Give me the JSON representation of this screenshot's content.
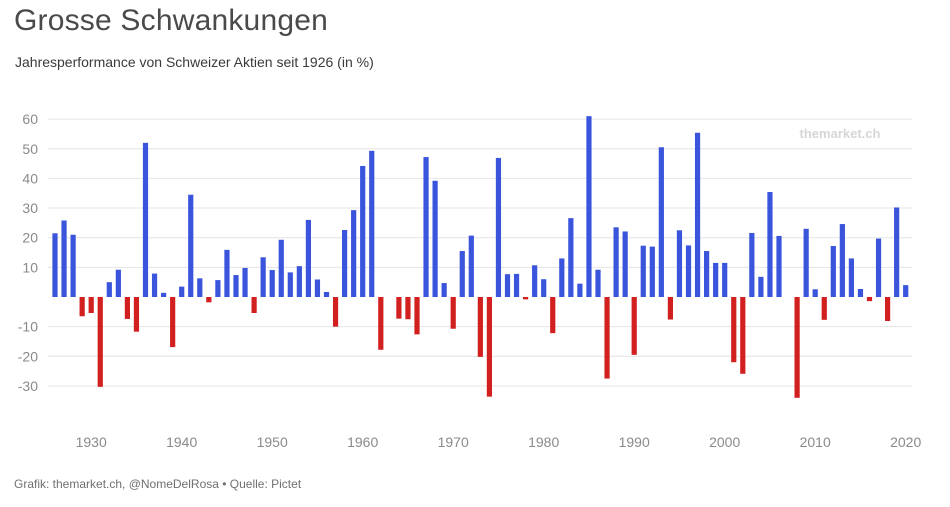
{
  "title": "Grosse Schwankungen",
  "subtitle": "Jahresperformance von Schweizer Aktien seit 1926 (in %)",
  "watermark": "themarket.ch",
  "footer": "Grafik: themarket.ch, @NomeDelRosa • Quelle: Pictet",
  "colors": {
    "positive": "#3a54dc",
    "negative": "#d21f1f",
    "grid": "#e4e4e4",
    "axis_text": "#8a8a8a"
  },
  "chart_data": {
    "type": "bar",
    "title": "Grosse Schwankungen",
    "subtitle": "Jahresperformance von Schweizer Aktien seit 1926 (in %)",
    "xlabel": "",
    "ylabel": "",
    "ylim": [
      -40,
      65
    ],
    "yticks": [
      60,
      50,
      40,
      30,
      20,
      10,
      -10,
      -20,
      -30
    ],
    "xticks": [
      1930,
      1940,
      1950,
      1960,
      1970,
      1980,
      1990,
      2000,
      2010,
      2020
    ],
    "grid": true,
    "legend": "none",
    "x": [
      1926,
      1927,
      1928,
      1929,
      1930,
      1931,
      1932,
      1933,
      1934,
      1935,
      1936,
      1937,
      1938,
      1939,
      1940,
      1941,
      1942,
      1943,
      1944,
      1945,
      1946,
      1947,
      1948,
      1949,
      1950,
      1951,
      1952,
      1953,
      1954,
      1955,
      1956,
      1957,
      1958,
      1959,
      1960,
      1961,
      1962,
      1963,
      1964,
      1965,
      1966,
      1967,
      1968,
      1969,
      1970,
      1971,
      1972,
      1973,
      1974,
      1975,
      1976,
      1977,
      1978,
      1979,
      1980,
      1981,
      1982,
      1983,
      1984,
      1985,
      1986,
      1987,
      1988,
      1989,
      1990,
      1991,
      1992,
      1993,
      1994,
      1995,
      1996,
      1997,
      1998,
      1999,
      2000,
      2001,
      2002,
      2003,
      2004,
      2005,
      2006,
      2007,
      2008,
      2009,
      2010,
      2011,
      2012,
      2013,
      2014,
      2015,
      2016,
      2017,
      2018,
      2019,
      2020
    ],
    "values": [
      21.5,
      25.8,
      21,
      -6.5,
      -5.4,
      -30.3,
      5,
      9.2,
      -7.4,
      -11.7,
      52,
      7.9,
      1.4,
      -16.9,
      3.5,
      34.5,
      6.3,
      -1.8,
      5.7,
      15.9,
      7.4,
      9.8,
      -5.4,
      13.4,
      9.1,
      19.3,
      8.3,
      10.4,
      26,
      5.9,
      1.7,
      -10,
      22.6,
      29.3,
      44.2,
      49.3,
      -17.8,
      0,
      -7.3,
      -7.5,
      -12.6,
      47.2,
      39.2,
      4.7,
      -10.7,
      15.5,
      20.7,
      -20.2,
      -33.6,
      46.9,
      7.7,
      7.8,
      -0.8,
      10.7,
      6,
      -12.2,
      13,
      26.6,
      4.5,
      61,
      9.2,
      -27.5,
      23.5,
      22.1,
      -19.5,
      17.3,
      17,
      50.5,
      -7.6,
      22.5,
      17.4,
      55.4,
      15.5,
      11.5,
      11.5,
      -22,
      -25.9,
      21.6,
      6.8,
      35.4,
      20.6,
      0,
      -34,
      23,
      2.6,
      -7.7,
      17.2,
      24.6,
      13,
      2.7,
      -1.4,
      19.7,
      -8.1,
      30.2,
      4
    ]
  }
}
